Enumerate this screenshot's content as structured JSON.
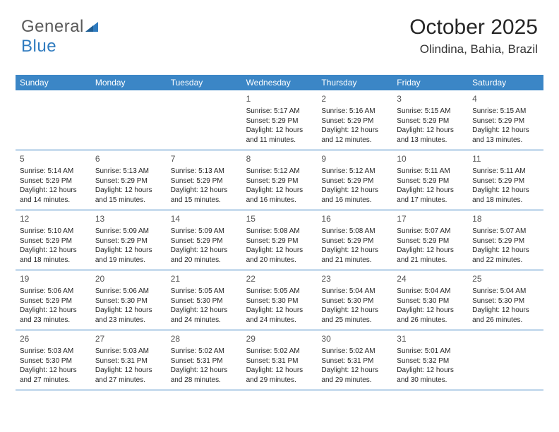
{
  "brand": {
    "part1": "General",
    "part2": "Blue"
  },
  "header": {
    "month_year": "October 2025",
    "location": "Olindina, Bahia, Brazil"
  },
  "colors": {
    "header_bg": "#3b86c6",
    "border": "#2f7bbf",
    "logo_gray": "#5a5a5a",
    "logo_blue": "#2f7bbf",
    "text": "#262626"
  },
  "calendar": {
    "day_header_fontsize": 12,
    "cell_fontsize": 10,
    "daynum_fontsize": 12,
    "days": [
      "Sunday",
      "Monday",
      "Tuesday",
      "Wednesday",
      "Thursday",
      "Friday",
      "Saturday"
    ],
    "weeks": [
      [
        null,
        null,
        null,
        {
          "n": "1",
          "sr": "5:17 AM",
          "ss": "5:29 PM",
          "dl": "12 hours and 11 minutes."
        },
        {
          "n": "2",
          "sr": "5:16 AM",
          "ss": "5:29 PM",
          "dl": "12 hours and 12 minutes."
        },
        {
          "n": "3",
          "sr": "5:15 AM",
          "ss": "5:29 PM",
          "dl": "12 hours and 13 minutes."
        },
        {
          "n": "4",
          "sr": "5:15 AM",
          "ss": "5:29 PM",
          "dl": "12 hours and 13 minutes."
        }
      ],
      [
        {
          "n": "5",
          "sr": "5:14 AM",
          "ss": "5:29 PM",
          "dl": "12 hours and 14 minutes."
        },
        {
          "n": "6",
          "sr": "5:13 AM",
          "ss": "5:29 PM",
          "dl": "12 hours and 15 minutes."
        },
        {
          "n": "7",
          "sr": "5:13 AM",
          "ss": "5:29 PM",
          "dl": "12 hours and 15 minutes."
        },
        {
          "n": "8",
          "sr": "5:12 AM",
          "ss": "5:29 PM",
          "dl": "12 hours and 16 minutes."
        },
        {
          "n": "9",
          "sr": "5:12 AM",
          "ss": "5:29 PM",
          "dl": "12 hours and 16 minutes."
        },
        {
          "n": "10",
          "sr": "5:11 AM",
          "ss": "5:29 PM",
          "dl": "12 hours and 17 minutes."
        },
        {
          "n": "11",
          "sr": "5:11 AM",
          "ss": "5:29 PM",
          "dl": "12 hours and 18 minutes."
        }
      ],
      [
        {
          "n": "12",
          "sr": "5:10 AM",
          "ss": "5:29 PM",
          "dl": "12 hours and 18 minutes."
        },
        {
          "n": "13",
          "sr": "5:09 AM",
          "ss": "5:29 PM",
          "dl": "12 hours and 19 minutes."
        },
        {
          "n": "14",
          "sr": "5:09 AM",
          "ss": "5:29 PM",
          "dl": "12 hours and 20 minutes."
        },
        {
          "n": "15",
          "sr": "5:08 AM",
          "ss": "5:29 PM",
          "dl": "12 hours and 20 minutes."
        },
        {
          "n": "16",
          "sr": "5:08 AM",
          "ss": "5:29 PM",
          "dl": "12 hours and 21 minutes."
        },
        {
          "n": "17",
          "sr": "5:07 AM",
          "ss": "5:29 PM",
          "dl": "12 hours and 21 minutes."
        },
        {
          "n": "18",
          "sr": "5:07 AM",
          "ss": "5:29 PM",
          "dl": "12 hours and 22 minutes."
        }
      ],
      [
        {
          "n": "19",
          "sr": "5:06 AM",
          "ss": "5:29 PM",
          "dl": "12 hours and 23 minutes."
        },
        {
          "n": "20",
          "sr": "5:06 AM",
          "ss": "5:30 PM",
          "dl": "12 hours and 23 minutes."
        },
        {
          "n": "21",
          "sr": "5:05 AM",
          "ss": "5:30 PM",
          "dl": "12 hours and 24 minutes."
        },
        {
          "n": "22",
          "sr": "5:05 AM",
          "ss": "5:30 PM",
          "dl": "12 hours and 24 minutes."
        },
        {
          "n": "23",
          "sr": "5:04 AM",
          "ss": "5:30 PM",
          "dl": "12 hours and 25 minutes."
        },
        {
          "n": "24",
          "sr": "5:04 AM",
          "ss": "5:30 PM",
          "dl": "12 hours and 26 minutes."
        },
        {
          "n": "25",
          "sr": "5:04 AM",
          "ss": "5:30 PM",
          "dl": "12 hours and 26 minutes."
        }
      ],
      [
        {
          "n": "26",
          "sr": "5:03 AM",
          "ss": "5:30 PM",
          "dl": "12 hours and 27 minutes."
        },
        {
          "n": "27",
          "sr": "5:03 AM",
          "ss": "5:31 PM",
          "dl": "12 hours and 27 minutes."
        },
        {
          "n": "28",
          "sr": "5:02 AM",
          "ss": "5:31 PM",
          "dl": "12 hours and 28 minutes."
        },
        {
          "n": "29",
          "sr": "5:02 AM",
          "ss": "5:31 PM",
          "dl": "12 hours and 29 minutes."
        },
        {
          "n": "30",
          "sr": "5:02 AM",
          "ss": "5:31 PM",
          "dl": "12 hours and 29 minutes."
        },
        {
          "n": "31",
          "sr": "5:01 AM",
          "ss": "5:32 PM",
          "dl": "12 hours and 30 minutes."
        },
        null
      ]
    ],
    "labels": {
      "sunrise": "Sunrise:",
      "sunset": "Sunset:",
      "daylight": "Daylight:"
    }
  }
}
